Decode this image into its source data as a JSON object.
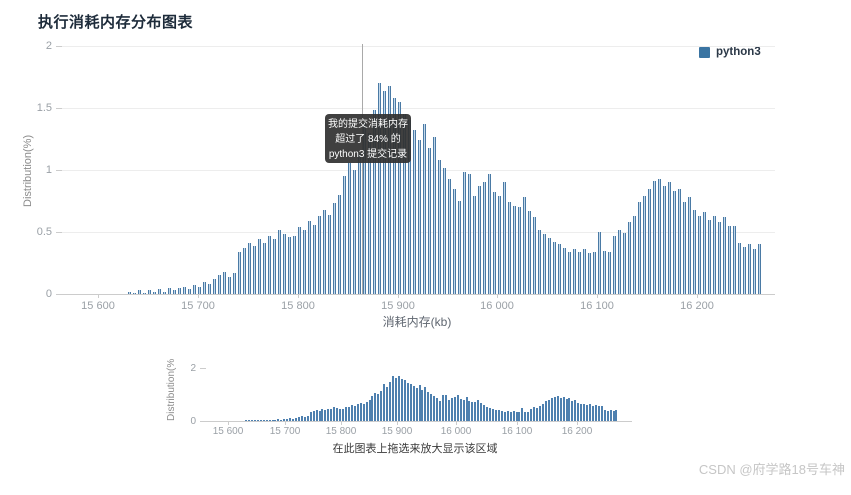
{
  "page": {
    "title": "执行消耗内存分布图表",
    "watermark": "CSDN @府学路18号车神"
  },
  "legend": {
    "label": "python3",
    "color": "#3a74a2"
  },
  "tooltip": {
    "lines": [
      "我的提交消耗内存",
      "超过了 84% 的",
      "python3 提交记录"
    ],
    "percentile": "84%"
  },
  "main_chart": {
    "y_axis": {
      "name": "Distribution(%)",
      "ticks": [
        "2",
        "1.5",
        "1",
        "0.5",
        "0"
      ]
    },
    "x_axis": {
      "name": "消耗内存(kb)",
      "ticks": [
        "15 600",
        "15 700",
        "15 800",
        "15 900",
        "16 000",
        "16 100",
        "16 200"
      ]
    }
  },
  "mini_chart": {
    "y_axis": {
      "name": "Distribution(%",
      "ticks": [
        "2",
        "0"
      ]
    },
    "x_axis": {
      "ticks": [
        "15 600",
        "15 700",
        "15 800",
        "15 900",
        "16 000",
        "16 100",
        "16 200"
      ]
    },
    "caption": "在此图表上拖选来放大显示该区域"
  },
  "colors": {
    "bar_edge": "#4a7aa5",
    "bar_fill": "#c3d8ea",
    "mini_bar": "#4e80af",
    "axis": "#cccccc",
    "tick_text": "#9aa0a6",
    "tooltip_bg": "rgba(50,50,50,0.93)"
  },
  "chart_data": {
    "type": "bar",
    "title": "执行消耗内存分布图表",
    "series_name": "python3",
    "xlabel": "消耗内存(kb)",
    "ylabel": "Distribution(%)",
    "ylim": [
      0,
      2
    ],
    "x_tick_labels": [
      "15 600",
      "15 700",
      "15 800",
      "15 900",
      "16 000",
      "16 100",
      "16 200"
    ],
    "x_start_kb": 15632,
    "x_step_kb": 5,
    "marker_kb": 15864,
    "marker_note": "我的提交消耗内存超过了 84% 的 python3 提交记录",
    "values": [
      0.02,
      0.01,
      0.03,
      0.01,
      0.03,
      0.02,
      0.04,
      0.02,
      0.05,
      0.03,
      0.05,
      0.06,
      0.04,
      0.07,
      0.06,
      0.1,
      0.08,
      0.12,
      0.15,
      0.18,
      0.14,
      0.17,
      0.34,
      0.37,
      0.41,
      0.39,
      0.44,
      0.41,
      0.47,
      0.44,
      0.52,
      0.48,
      0.46,
      0.47,
      0.54,
      0.52,
      0.59,
      0.56,
      0.63,
      0.68,
      0.64,
      0.73,
      0.8,
      0.95,
      1.06,
      1.0,
      1.14,
      1.38,
      1.3,
      1.48,
      1.7,
      1.64,
      1.68,
      1.58,
      1.55,
      1.45,
      1.4,
      1.32,
      1.24,
      1.37,
      1.18,
      1.27,
      1.08,
      1.02,
      0.93,
      0.85,
      0.75,
      0.98,
      0.97,
      0.79,
      0.87,
      0.9,
      0.97,
      0.82,
      0.79,
      0.9,
      0.74,
      0.71,
      0.7,
      0.78,
      0.67,
      0.62,
      0.52,
      0.48,
      0.45,
      0.42,
      0.4,
      0.37,
      0.34,
      0.36,
      0.34,
      0.36,
      0.33,
      0.34,
      0.5,
      0.35,
      0.34,
      0.47,
      0.52,
      0.49,
      0.58,
      0.63,
      0.74,
      0.79,
      0.85,
      0.91,
      0.93,
      0.87,
      0.9,
      0.83,
      0.85,
      0.74,
      0.78,
      0.68,
      0.63,
      0.66,
      0.6,
      0.63,
      0.58,
      0.62,
      0.55,
      0.55,
      0.41,
      0.38,
      0.4,
      0.36,
      0.4
    ]
  }
}
